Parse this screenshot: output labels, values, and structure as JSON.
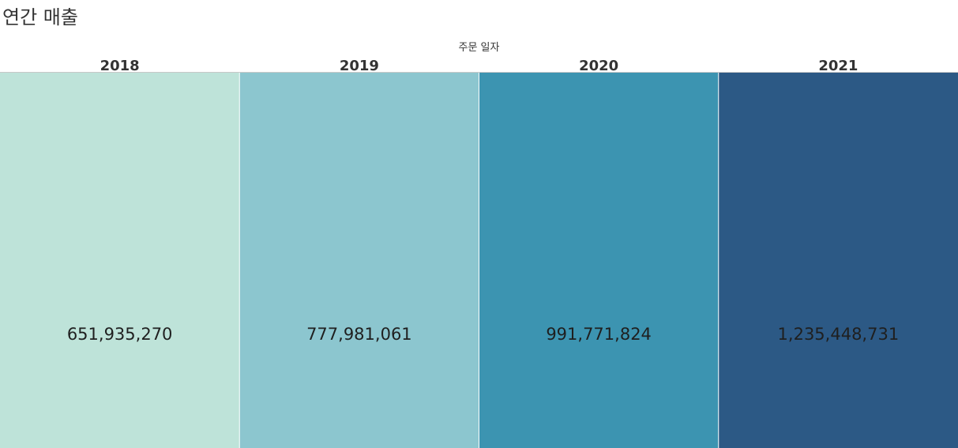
{
  "chart_data": {
    "type": "table",
    "title": "연간 매출",
    "column_header": "주문 일자",
    "categories": [
      "2018",
      "2019",
      "2020",
      "2021"
    ],
    "values": [
      651935270,
      777981061,
      991771824,
      1235448731
    ],
    "value_labels": [
      "651,935,270",
      "777,981,061",
      "991,771,824",
      "1,235,448,731"
    ],
    "colors": [
      "#bee3d9",
      "#8cc6cf",
      "#3c94b1",
      "#2c5985"
    ],
    "divider_color": "#c8c8c8"
  }
}
